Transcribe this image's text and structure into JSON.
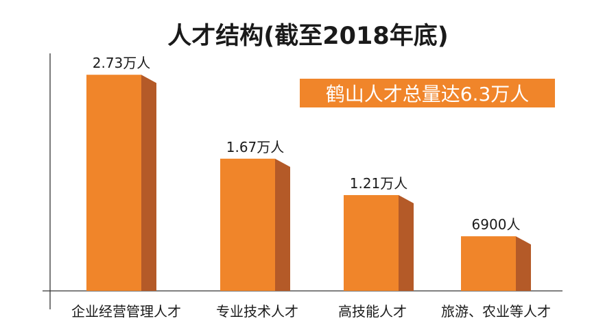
{
  "chart_data": {
    "type": "bar",
    "title": "人才结构(截至2018年底)",
    "categories": [
      "企业经营管理人才",
      "专业技术人才",
      "高技能人才",
      "旅游、农业等人才"
    ],
    "values": [
      27300,
      16700,
      12100,
      6900
    ],
    "value_labels": [
      "2.73万人",
      "1.67万人",
      "1.21万人",
      "6900人"
    ],
    "units_note": "人",
    "xlabel": "",
    "ylabel": "",
    "ylim": [
      0,
      30000
    ],
    "grid": false,
    "legend": "none",
    "style": "3d-bars"
  },
  "summary_badge": {
    "text": "鹤山人才总量达6.3万人"
  },
  "colors": {
    "bar_front": "#F0852A",
    "bar_side": "#B45A28",
    "bar_top": "#D9722E",
    "badge_bg": "#F0852A",
    "axis": "#333333"
  }
}
